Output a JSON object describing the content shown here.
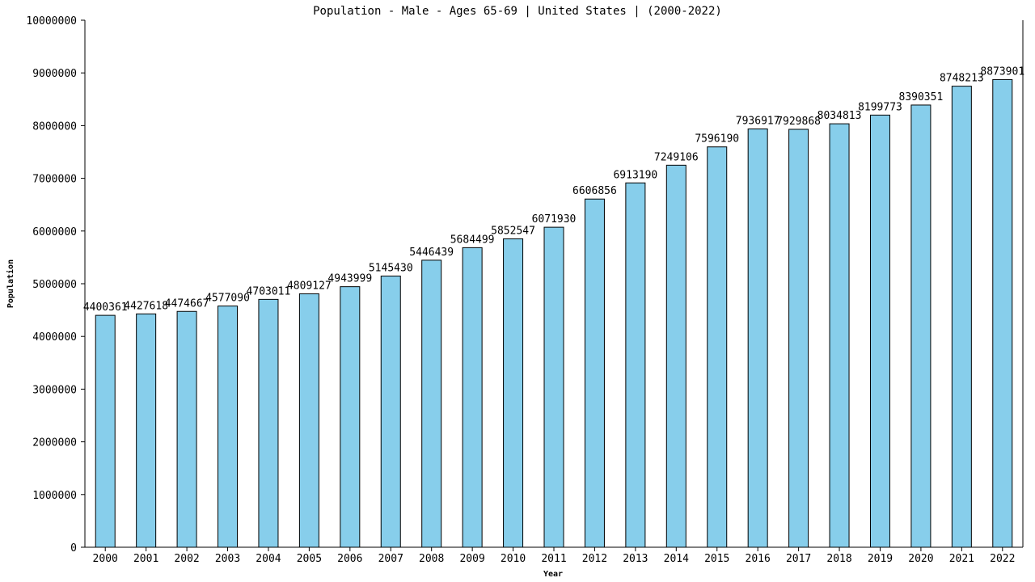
{
  "chart_data": {
    "type": "bar",
    "title": "Population - Male - Ages 65-69 | United States |  (2000-2022)",
    "xlabel": "Year",
    "ylabel": "Population",
    "ylim": [
      0,
      10000000
    ],
    "y_ticks": [
      "0",
      "1000000",
      "2000000",
      "3000000",
      "4000000",
      "5000000",
      "6000000",
      "7000000",
      "8000000",
      "9000000",
      "10000000"
    ],
    "categories": [
      "2000",
      "2001",
      "2002",
      "2003",
      "2004",
      "2005",
      "2006",
      "2007",
      "2008",
      "2009",
      "2010",
      "2011",
      "2012",
      "2013",
      "2014",
      "2015",
      "2016",
      "2017",
      "2018",
      "2019",
      "2020",
      "2021",
      "2022"
    ],
    "values": [
      4400361,
      4427618,
      4474667,
      4577090,
      4703011,
      4809127,
      4943999,
      5145430,
      5446439,
      5684499,
      5852547,
      6071930,
      6606856,
      6913190,
      7249106,
      7596190,
      7936917,
      7929868,
      8034813,
      8199773,
      8390351,
      8748213,
      8873901
    ],
    "bar_color": "#87ceeb",
    "bar_stroke": "#000000",
    "grid": false,
    "legend": "none"
  }
}
